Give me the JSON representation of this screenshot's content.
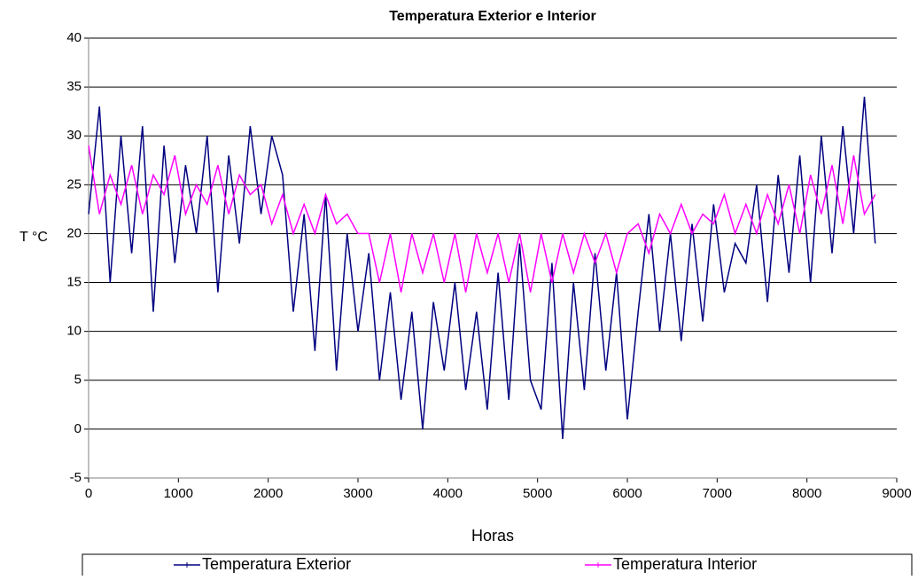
{
  "chart_data": {
    "type": "line",
    "title": "Temperatura Exterior e Interior",
    "x_label": "Horas",
    "y_label": "T °C",
    "x": [
      0,
      120,
      240,
      360,
      480,
      600,
      720,
      840,
      960,
      1080,
      1200,
      1320,
      1440,
      1560,
      1680,
      1800,
      1920,
      2040,
      2160,
      2280,
      2400,
      2520,
      2640,
      2760,
      2880,
      3000,
      3120,
      3240,
      3360,
      3480,
      3600,
      3720,
      3840,
      3960,
      4080,
      4200,
      4320,
      4440,
      4560,
      4680,
      4800,
      4920,
      5040,
      5160,
      5280,
      5400,
      5520,
      5640,
      5760,
      5880,
      6000,
      6120,
      6240,
      6360,
      6480,
      6600,
      6720,
      6840,
      6960,
      7080,
      7200,
      7320,
      7440,
      7560,
      7680,
      7800,
      7920,
      8040,
      8160,
      8280,
      8400,
      8520,
      8640,
      8760
    ],
    "series": [
      {
        "name": "Temperatura Exterior",
        "color": "#000080",
        "values": [
          22,
          33,
          15,
          30,
          18,
          31,
          12,
          29,
          17,
          27,
          20,
          30,
          14,
          28,
          19,
          31,
          22,
          30,
          26,
          12,
          22,
          8,
          24,
          6,
          20,
          10,
          18,
          5,
          14,
          3,
          12,
          0,
          13,
          6,
          15,
          4,
          12,
          2,
          16,
          3,
          19,
          5,
          2,
          17,
          -1,
          15,
          4,
          18,
          6,
          16,
          1,
          12,
          22,
          10,
          20,
          9,
          21,
          11,
          23,
          14,
          19,
          17,
          25,
          13,
          26,
          16,
          28,
          15,
          30,
          18,
          31,
          20,
          34,
          19
        ]
      },
      {
        "name": "Temperatura Interior",
        "color": "#ff00ff",
        "values": [
          29,
          22,
          26,
          23,
          27,
          22,
          26,
          24,
          28,
          22,
          25,
          23,
          27,
          22,
          26,
          24,
          25,
          21,
          24,
          20,
          23,
          20,
          24,
          21,
          22,
          20,
          20,
          15,
          20,
          14,
          20,
          16,
          20,
          15,
          20,
          14,
          20,
          16,
          20,
          15,
          20,
          14,
          20,
          15,
          20,
          16,
          20,
          17,
          20,
          16,
          20,
          21,
          18,
          22,
          20,
          23,
          20,
          22,
          21,
          24,
          20,
          23,
          20,
          24,
          21,
          25,
          20,
          26,
          22,
          27,
          21,
          28,
          22,
          24
        ]
      }
    ],
    "xlim": [
      0,
      9000
    ],
    "xticks": [
      0,
      1000,
      2000,
      3000,
      4000,
      5000,
      6000,
      7000,
      8000,
      9000
    ],
    "ylim": [
      -5,
      40
    ],
    "yticks": [
      -5,
      0,
      5,
      10,
      15,
      20,
      25,
      30,
      35,
      40
    ],
    "grid": true,
    "legend": "bottom"
  }
}
